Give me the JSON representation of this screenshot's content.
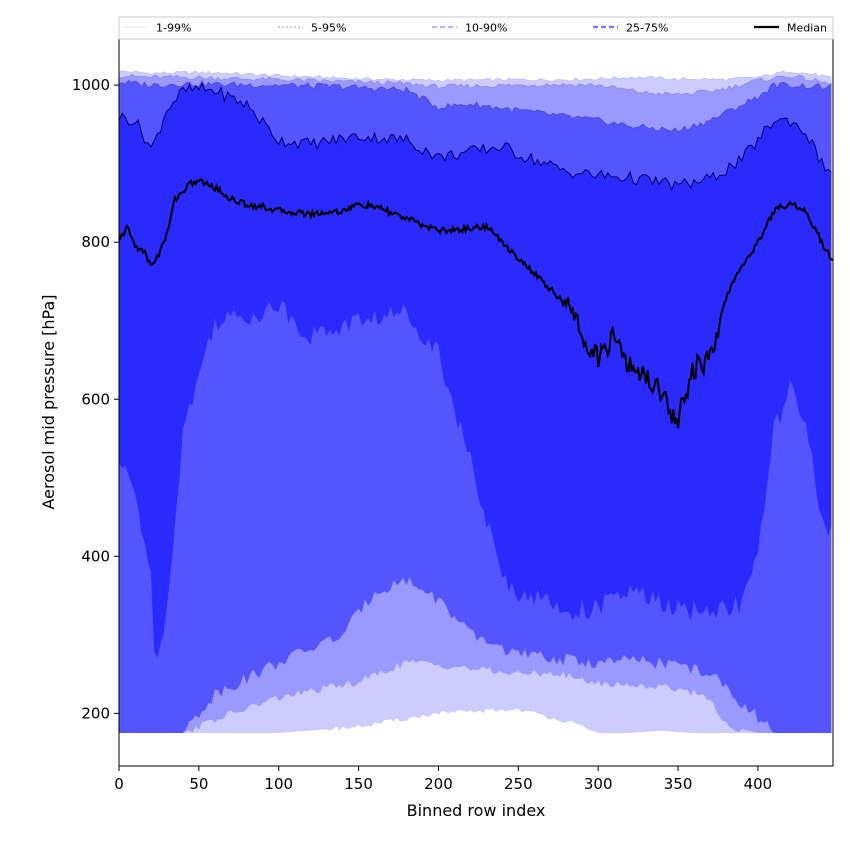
{
  "chart_data": {
    "type": "area",
    "xlabel": "Binned row index",
    "ylabel": "Aerosol mid pressure [hPa]",
    "xlim": [
      0,
      447
    ],
    "ylim": [
      133,
      1060
    ],
    "x_ticks": [
      0,
      50,
      100,
      150,
      200,
      250,
      300,
      350,
      400
    ],
    "y_ticks": [
      200,
      400,
      600,
      800,
      1000
    ],
    "legend_position": "top, above plot, single row",
    "colors": {
      "band_1_99": "#ccccff",
      "band_5_95": "#9999ff",
      "band_10_90": "#5555ff",
      "band_25_75": "#2a2aff",
      "median": "#000000"
    },
    "series": [
      {
        "name": "1-99%",
        "x": [
          0,
          20,
          40,
          60,
          100,
          150,
          200,
          250,
          280,
          300,
          320,
          340,
          350,
          360,
          380,
          400,
          420,
          440,
          447
        ],
        "lower": [
          175,
          175,
          175,
          175,
          175,
          183,
          200,
          205,
          190,
          175,
          175,
          178,
          176,
          175,
          175,
          175,
          175,
          175,
          175
        ],
        "upper": [
          1018,
          1015,
          1016,
          1016,
          1012,
          1008,
          1006,
          1007,
          1007,
          1008,
          1010,
          1009,
          1007,
          1008,
          1007,
          1010,
          1018,
          1012,
          1008
        ]
      },
      {
        "name": "5-95%",
        "x": [
          0,
          20,
          40,
          60,
          100,
          150,
          180,
          200,
          250,
          270,
          300,
          330,
          350,
          370,
          380,
          400,
          420,
          440,
          447
        ],
        "lower": [
          175,
          175,
          175,
          192,
          220,
          240,
          265,
          262,
          250,
          252,
          238,
          235,
          232,
          220,
          185,
          175,
          175,
          175,
          175
        ],
        "upper": [
          1012,
          1010,
          1010,
          1009,
          1007,
          1004,
          1002,
          998,
          1000,
          1001,
          1000,
          990,
          988,
          992,
          996,
          1006,
          1012,
          1004,
          1000
        ]
      },
      {
        "name": "10-90%",
        "x": [
          0,
          20,
          40,
          60,
          100,
          140,
          160,
          180,
          200,
          220,
          250,
          280,
          300,
          320,
          350,
          370,
          400,
          410,
          420,
          440,
          447
        ],
        "lower": [
          175,
          175,
          175,
          225,
          265,
          300,
          355,
          370,
          345,
          300,
          275,
          268,
          264,
          268,
          262,
          250,
          195,
          175,
          175,
          175,
          175
        ],
        "upper": [
          1004,
          1000,
          1002,
          1001,
          1000,
          998,
          996,
          994,
          972,
          976,
          968,
          960,
          955,
          948,
          942,
          955,
          985,
          1000,
          1000,
          998,
          997
        ]
      },
      {
        "name": "25-75%",
        "x": [
          0,
          10,
          20,
          22,
          30,
          40,
          50,
          60,
          80,
          100,
          120,
          150,
          180,
          200,
          220,
          240,
          250,
          260,
          280,
          300,
          320,
          340,
          350,
          370,
          390,
          400,
          410,
          420,
          430,
          440,
          447
        ],
        "lower": [
          520,
          480,
          380,
          268,
          330,
          560,
          630,
          700,
          705,
          720,
          680,
          700,
          710,
          660,
          520,
          370,
          355,
          350,
          330,
          335,
          355,
          340,
          330,
          330,
          340,
          400,
          560,
          615,
          560,
          450,
          430
        ],
        "upper": [
          960,
          955,
          920,
          925,
          970,
          992,
          995,
          993,
          975,
          930,
          925,
          935,
          930,
          908,
          915,
          922,
          912,
          905,
          890,
          885,
          882,
          876,
          872,
          880,
          905,
          930,
          955,
          955,
          940,
          900,
          888
        ]
      },
      {
        "name": "Median",
        "x": [
          0,
          5,
          10,
          15,
          20,
          25,
          30,
          35,
          40,
          45,
          50,
          60,
          70,
          80,
          90,
          100,
          120,
          140,
          150,
          160,
          170,
          180,
          190,
          200,
          210,
          220,
          230,
          240,
          250,
          260,
          270,
          280,
          290,
          300,
          310,
          320,
          330,
          340,
          345,
          350,
          355,
          360,
          370,
          375,
          380,
          390,
          400,
          410,
          420,
          430,
          440,
          447
        ],
        "values": [
          800,
          820,
          795,
          790,
          770,
          785,
          810,
          855,
          865,
          875,
          878,
          870,
          855,
          848,
          845,
          840,
          836,
          840,
          848,
          845,
          838,
          830,
          822,
          815,
          815,
          818,
          820,
          800,
          780,
          760,
          740,
          720,
          685,
          650,
          680,
          640,
          630,
          610,
          585,
          575,
          610,
          640,
          650,
          680,
          730,
          770,
          800,
          840,
          850,
          840,
          800,
          775
        ]
      }
    ]
  }
}
